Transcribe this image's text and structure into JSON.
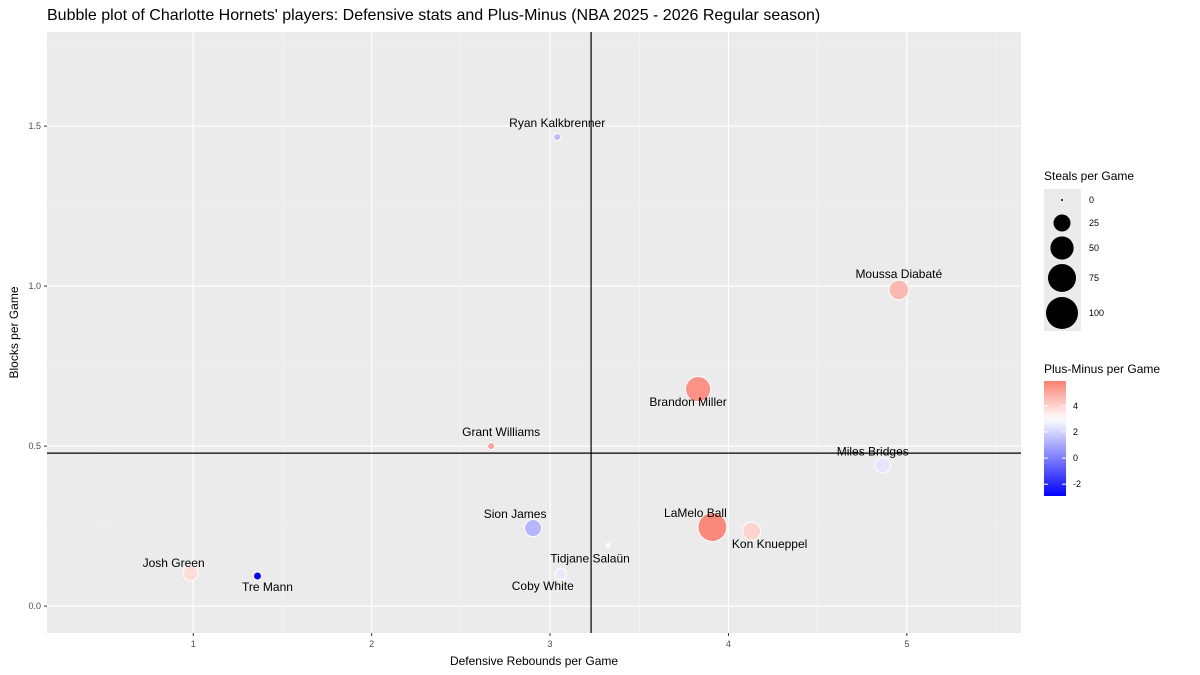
{
  "chart_data": {
    "type": "scatter",
    "title": "Bubble plot of Charlotte Hornets' players: Defensive stats and Plus-Minus (NBA 2025 - 2026 Regular season)",
    "xlabel": "Defensive Rebounds per Game",
    "ylabel": "Blocks per Game",
    "xlim": [
      0.18,
      5.64
    ],
    "ylim": [
      -0.084,
      1.794
    ],
    "xticks": [
      1,
      2,
      3,
      4,
      5
    ],
    "yticks": [
      0.0,
      0.5,
      1.0,
      1.5
    ],
    "ytick_labels": [
      "0.0",
      "0.5",
      "1.0",
      "1.5"
    ],
    "vline": 3.23,
    "hline": 0.478,
    "grid": true,
    "points": [
      {
        "name": "Ryan Kalkbrenner",
        "x": 3.04,
        "y": 1.466,
        "steals": 3,
        "plus_minus": 1.5,
        "lx": 0,
        "ly": -10
      },
      {
        "name": "Moussa Diabaté",
        "x": 4.955,
        "y": 0.988,
        "steals": 35,
        "plus_minus": 4.6,
        "lx": 0,
        "ly": -12
      },
      {
        "name": "Brandon Miller",
        "x": 3.83,
        "y": 0.678,
        "steals": 60,
        "plus_minus": 5.5,
        "lx": -10,
        "ly": 17
      },
      {
        "name": "Grant Williams",
        "x": 2.67,
        "y": 0.5,
        "steals": 3,
        "plus_minus": 5.0,
        "lx": 10,
        "ly": -10
      },
      {
        "name": "Miles Bridges",
        "x": 4.865,
        "y": 0.44,
        "steals": 20,
        "plus_minus": 2.4,
        "lx": -10,
        "ly": -10
      },
      {
        "name": "Sion James",
        "x": 2.905,
        "y": 0.244,
        "steals": 25,
        "plus_minus": 1.3,
        "lx": -18,
        "ly": -10
      },
      {
        "name": "LaMelo Ball",
        "x": 3.91,
        "y": 0.247,
        "steals": 80,
        "plus_minus": 5.7,
        "lx": -17,
        "ly": -10
      },
      {
        "name": "Kon Knueppel",
        "x": 4.13,
        "y": 0.234,
        "steals": 28,
        "plus_minus": 4.0,
        "lx": 18,
        "ly": 17
      },
      {
        "name": "Tidjane Salaün",
        "x": 3.325,
        "y": 0.19,
        "steals": 0.5,
        "plus_minus": 3.0,
        "lx": -18,
        "ly": 17
      },
      {
        "name": "Coby White",
        "x": 3.06,
        "y": 0.1,
        "steals": 10,
        "plus_minus": 2.5,
        "lx": -18,
        "ly": 16
      },
      {
        "name": "Josh Green",
        "x": 0.985,
        "y": 0.103,
        "steals": 20,
        "plus_minus": 3.8,
        "lx": -17,
        "ly": -6
      },
      {
        "name": "Tre Mann",
        "x": 1.36,
        "y": 0.094,
        "steals": 4,
        "plus_minus": -2.8,
        "lx": 10,
        "ly": 15
      }
    ],
    "size_legend": {
      "title": "Steals per Game",
      "values": [
        0,
        25,
        50,
        75,
        100
      ],
      "labels": [
        "0",
        "25",
        "50",
        "75",
        "100"
      ]
    },
    "color_legend": {
      "title": "Plus-Minus per Game",
      "ticks": [
        -2,
        0,
        2,
        4
      ],
      "labels": [
        "-2",
        "0",
        "2",
        "4"
      ],
      "range": [
        -2.9,
        5.9
      ],
      "midpoint": 3.0,
      "low": "#0000ff",
      "mid": "#ffffff",
      "high": "#fa8072"
    }
  }
}
